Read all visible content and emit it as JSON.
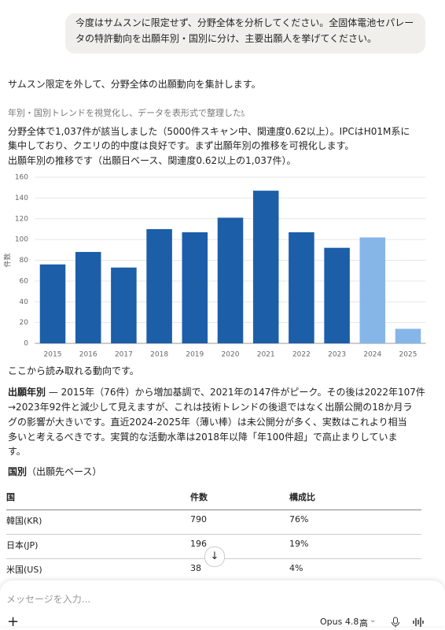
{
  "user_message": [
    "今度はサムスンに限定せず、分野全体を分析してください。全固体電池セパレー",
    "タの特許動向を出願年別・国別に分け、主要出願人を挙げてください。"
  ],
  "assistant": {
    "intro": "サムスン限定を外して、分野全体の出願動向を集計します。",
    "step": "年別・国別トレンドを視覚化し、データを表形式で整理した。",
    "para1": [
      "分野全体で1,037件が該当しました（5000件スキャン中、関連度0.62以上）。IPCはH01M系に",
      "集中しており、クエリの的中度は良好です。まず出願年別の推移を可視化します。"
    ],
    "caption": "出願年別の推移です（出願日ベース、関連度0.62以上の1,037件）。",
    "trends_intro": "ここから読み取れる動向です。",
    "para2_lead": "出願年別",
    "para2": [
      " — 2015年（76件）から増加基調で、2021年の147件がピーク。その後は2022年107件",
      "→2023年92件と減少して見えますが、これは技術トレンドの後退ではなく出願公開の18か月ラ",
      "グの影響が大きいです。直近2024-2025年（薄い棒）は未公開分が多く、実数はこれより相当",
      "多いと考えるべきです。実質的な活動水準は2018年以降「年100件超」で高止まりしていま",
      "す。"
    ],
    "section_lead": "国別",
    "section_rest": "（出願先ベース）"
  },
  "chart_data": {
    "type": "bar",
    "y_label": "件数",
    "categories": [
      "2015",
      "2016",
      "2017",
      "2018",
      "2019",
      "2020",
      "2021",
      "2022",
      "2023",
      "2024",
      "2025"
    ],
    "values": [
      76,
      88,
      73,
      110,
      107,
      121,
      147,
      107,
      92,
      102,
      14
    ],
    "colors": [
      "#1c5ea8",
      "#1c5ea8",
      "#1c5ea8",
      "#1c5ea8",
      "#1c5ea8",
      "#1c5ea8",
      "#1c5ea8",
      "#1c5ea8",
      "#1c5ea8",
      "#86b6e8",
      "#86b6e8"
    ],
    "ylim": [
      0,
      160
    ],
    "yticks": [
      0,
      20,
      40,
      60,
      80,
      100,
      120,
      140,
      160
    ],
    "grid": true
  },
  "table": {
    "headers": [
      "国",
      "件数",
      "構成比"
    ],
    "rows": [
      [
        "韓国(KR)",
        "790",
        "76%"
      ],
      [
        "日本(JP)",
        "196",
        "19%"
      ],
      [
        "米国(US)",
        "38",
        "4%"
      ]
    ]
  },
  "input": {
    "placeholder": "メッセージを入力...",
    "model": "Opus 4.8",
    "effort": "高"
  }
}
